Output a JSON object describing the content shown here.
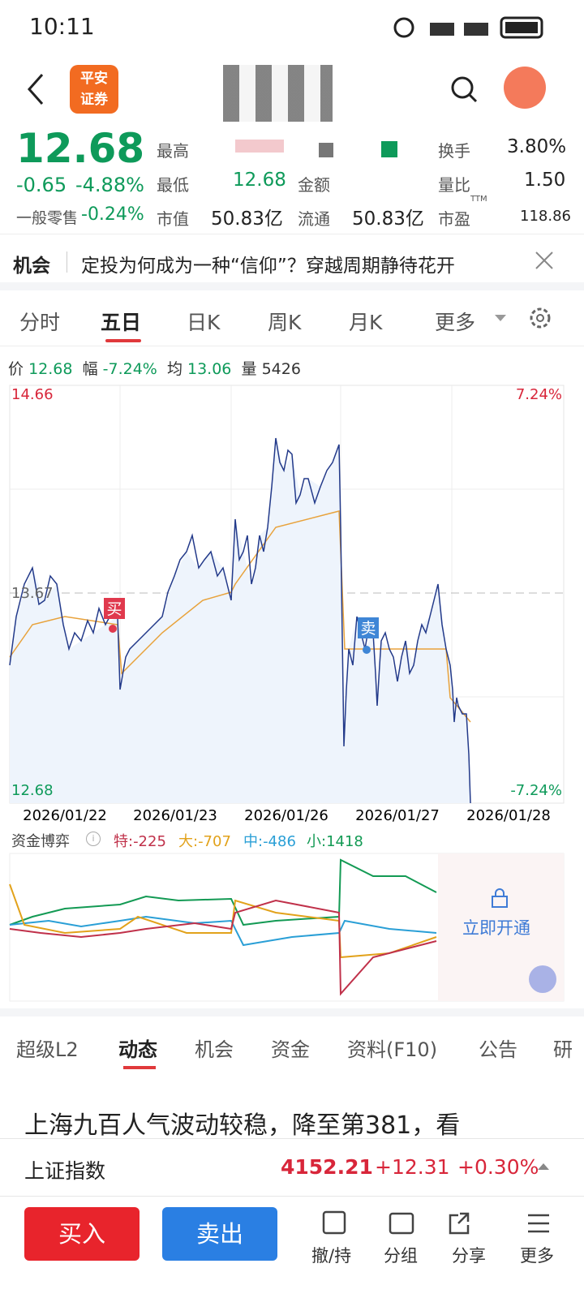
{
  "status": {
    "time": "10:11"
  },
  "quote": {
    "price": "12.68",
    "change": "-0.65",
    "change_pct": "-4.88%",
    "odd_lot_label": "一般零售",
    "odd_lot_value": "-0.24%"
  },
  "stats": [
    [
      "最高",
      ""
    ],
    [
      "换手",
      "3.80%"
    ],
    [
      "最低",
      "12.68"
    ],
    [
      "金额",
      ""
    ],
    [
      "量比",
      "1.50"
    ],
    [
      "市值",
      "50.83亿"
    ],
    [
      "流通",
      "50.83亿"
    ],
    [
      "市盈",
      "118.86"
    ]
  ],
  "stats_superscript": "TTM",
  "news": {
    "tag": "机会",
    "text": "定投为何成为一种“信仰”？穿越周期静待花开"
  },
  "chart_tabs": [
    "分时",
    "五日",
    "日K",
    "周K",
    "月K",
    "更多"
  ],
  "info": {
    "price_label": "价",
    "price": "12.68",
    "range_label": "幅",
    "range": "-7.24%",
    "avg_label": "均",
    "avg": "13.06",
    "vol_label": "量",
    "vol": "5426"
  },
  "chart": {
    "top_price": "14.66",
    "top_pct": "7.24%",
    "mid_price": "13.67",
    "bottom_price": "12.68",
    "bottom_pct": "-7.24%",
    "dates": [
      "2026/01/22",
      "2026/01/23",
      "2026/01/26",
      "2026/01/27",
      "2026/01/28"
    ],
    "buy": "买",
    "sell": "卖"
  },
  "fund": {
    "title": "资金博弈",
    "te": "特:-225",
    "da": "大:-707",
    "zhong": "中:-486",
    "xiao": "小:1418",
    "unlock": "立即开通"
  },
  "bottom_tabs": [
    "超级L2",
    "动态",
    "机会",
    "资金",
    "资料(F10)",
    "公告",
    "研"
  ],
  "headline": "上海九百人气波动较稳，降至第381，看",
  "index": {
    "name": "上证指数",
    "value": "4152.21",
    "change": "+12.31",
    "pct": "+0.30%"
  },
  "actions": {
    "buy": "买入",
    "sell": "卖出",
    "tools": [
      "撤/持",
      "分组",
      "分享",
      "更多"
    ]
  }
}
